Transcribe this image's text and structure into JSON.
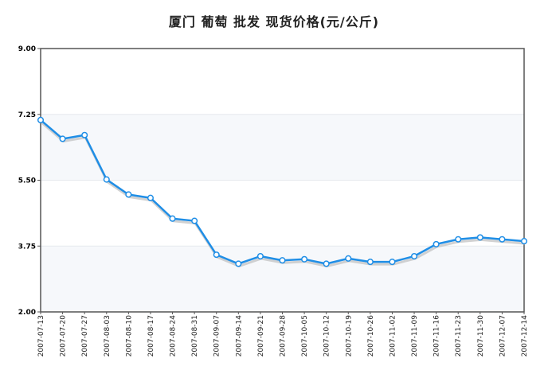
{
  "chart_data": {
    "type": "line",
    "title": "厦门 葡萄 批发 现货价格(元/公斤)",
    "x": [
      "2007-07-13",
      "2007-07-20",
      "2007-07-27",
      "2007-08-03",
      "2007-08-10",
      "2007-08-17",
      "2007-08-24",
      "2007-08-31",
      "2007-09-07",
      "2007-09-14",
      "2007-09-21",
      "2007-09-28",
      "2007-10-05",
      "2007-10-12",
      "2007-10-19",
      "2007-10-26",
      "2007-11-02",
      "2007-11-09",
      "2007-11-16",
      "2007-11-23",
      "2007-11-30",
      "2007-12-07",
      "2007-12-14"
    ],
    "series": [
      {
        "values": [
          7.1,
          6.6,
          6.7,
          5.52,
          5.12,
          5.03,
          4.48,
          4.42,
          3.52,
          3.28,
          3.48,
          3.37,
          3.4,
          3.28,
          3.42,
          3.33,
          3.33,
          3.48,
          3.8,
          3.93,
          3.98,
          3.93,
          3.88
        ]
      }
    ],
    "ylim": [
      2.0,
      9.0
    ],
    "yticks": [
      "2.00",
      "3.75",
      "5.50",
      "7.25",
      "9.00"
    ],
    "grid": true,
    "colors": {
      "line": "#1f8ee6",
      "shadow": "#bfbfbf",
      "marker_fill": "#ffffff",
      "band": "#f6f8fb",
      "axis": "#555555"
    }
  }
}
